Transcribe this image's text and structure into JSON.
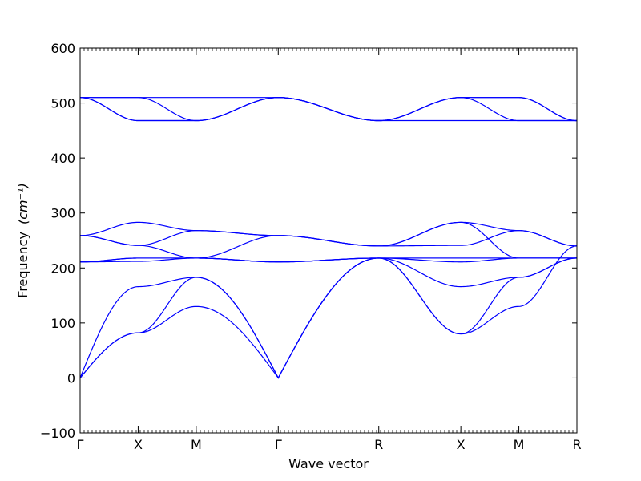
{
  "chart_data": {
    "type": "line",
    "xlabel": "Wave vector",
    "ylabel": "Frequency",
    "ylabel_unit": "(cm⁻¹)",
    "ylim": [
      -100,
      600
    ],
    "yticks": [
      -100,
      0,
      100,
      200,
      300,
      400,
      500,
      600
    ],
    "x_path_labels": [
      "Γ",
      "X",
      "M",
      "Γ",
      "R",
      "X",
      "M",
      "R"
    ],
    "segment_lengths": [
      1,
      1,
      1.414,
      1.732,
      1.414,
      1,
      1
    ],
    "zero_line": {
      "style": "dotted",
      "y": 0
    },
    "series_color": "#0000ff",
    "series": [
      {
        "values": [
          [
            0,
            80,
            183,
            0
          ],
          [
            0,
            80,
            183,
            0
          ],
          [
            0,
            165,
            183,
            0
          ],
          [
            0,
            80,
            130,
            0
          ]
        ]
      },
      {
        "values": [
          [
            0,
            80,
            183,
            0
          ],
          [
            0,
            80,
            183,
            0
          ],
          [
            0,
            165,
            183,
            0
          ],
          [
            0,
            80,
            130,
            0
          ]
        ]
      },
      {
        "values": [
          [
            0,
            80,
            183,
            0
          ],
          [
            0,
            80,
            183,
            0
          ],
          [
            0,
            165,
            183,
            0
          ],
          [
            0,
            80,
            130,
            0
          ]
        ]
      }
    ],
    "bands": [
      {
        "points": [
          0,
          82,
          183,
          0,
          218,
          80,
          183,
          218
        ]
      },
      {
        "points": [
          0,
          82,
          130,
          0,
          218,
          80,
          130,
          240
        ]
      },
      {
        "points": [
          0,
          166,
          183,
          0,
          218,
          166,
          183,
          218
        ]
      },
      {
        "points": [
          211,
          218,
          218,
          211,
          218,
          211,
          218,
          218
        ]
      },
      {
        "points": [
          211,
          212,
          218,
          211,
          218,
          218,
          218,
          218
        ]
      },
      {
        "points": [
          211,
          218,
          218,
          211,
          218,
          218,
          218,
          218
        ]
      },
      {
        "points": [
          259,
          241,
          268,
          259,
          240,
          241,
          268,
          240
        ]
      },
      {
        "points": [
          259,
          241,
          218,
          259,
          240,
          283,
          268,
          240
        ]
      },
      {
        "points": [
          259,
          283,
          268,
          259,
          240,
          283,
          218,
          218
        ]
      },
      {
        "points": [
          510,
          510,
          468,
          510,
          468,
          510,
          510,
          468
        ]
      },
      {
        "points": [
          510,
          468,
          468,
          510,
          468,
          510,
          468,
          468
        ]
      },
      {
        "points": [
          510,
          468,
          468,
          510,
          468,
          468,
          468,
          468
        ]
      },
      {
        "points": [
          510,
          510,
          510,
          510,
          468,
          510,
          510,
          468
        ]
      }
    ]
  }
}
